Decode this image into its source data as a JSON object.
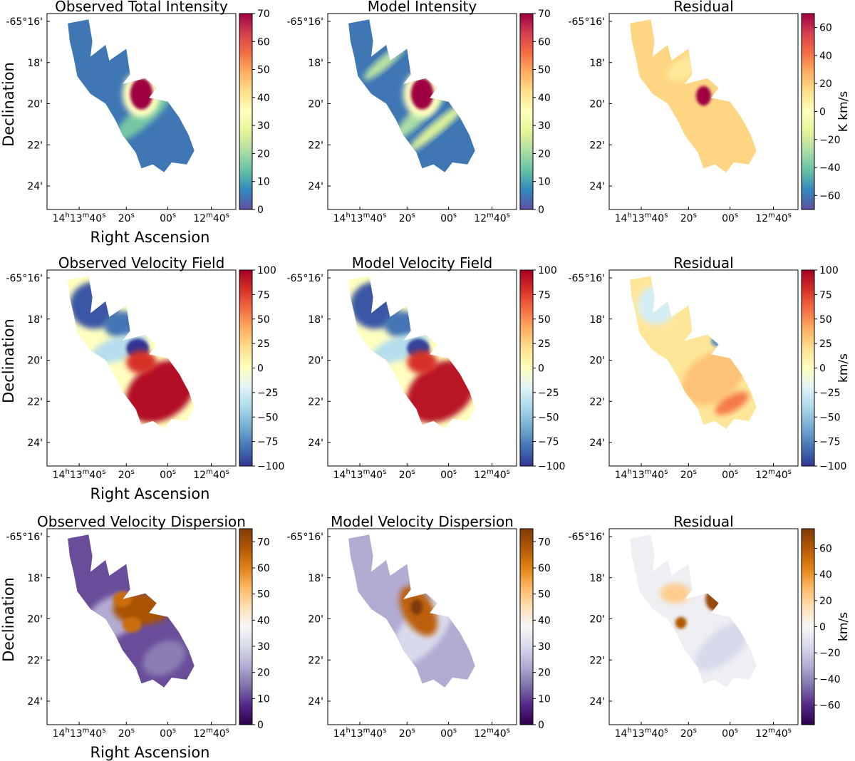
{
  "chart_data": [
    {
      "type": "heatmap",
      "title": "Observed Total Intensity",
      "xlabel": "Right Ascension",
      "ylabel": "Declination",
      "x_ticks": [
        "14h13m40s",
        "20s",
        "00s",
        "12m40s"
      ],
      "y_ticks": [
        "-65°16'",
        "18'",
        "20'",
        "22'",
        "24'"
      ],
      "colorbar": {
        "colormap": "spectral_r",
        "min": 0,
        "max": 70,
        "ticks": [
          0,
          10,
          20,
          30,
          40,
          50,
          60,
          70
        ],
        "label": ""
      }
    },
    {
      "type": "heatmap",
      "title": "Model Intensity",
      "xlabel": "",
      "ylabel": "",
      "x_ticks": [
        "14h13m40s",
        "20s",
        "00s",
        "12m40s"
      ],
      "y_ticks": [
        "-65°16'",
        "18'",
        "20'",
        "22'",
        "24'"
      ],
      "colorbar": {
        "colormap": "spectral_r",
        "min": 0,
        "max": 70,
        "ticks": [
          0,
          10,
          20,
          30,
          40,
          50,
          60,
          70
        ],
        "label": ""
      }
    },
    {
      "type": "heatmap",
      "title": "Residual",
      "xlabel": "",
      "ylabel": "",
      "x_ticks": [
        "14h13m40s",
        "20s",
        "00s",
        "12m40s"
      ],
      "y_ticks": [
        "-65°16'",
        "18'",
        "20'",
        "22'",
        "24'"
      ],
      "colorbar": {
        "colormap": "spectral_r",
        "min": -70,
        "max": 70,
        "ticks": [
          -60,
          -40,
          -20,
          0,
          20,
          40,
          60
        ],
        "label": "K km/s"
      }
    },
    {
      "type": "heatmap",
      "title": "Observed Velocity Field",
      "xlabel": "Right Ascension",
      "ylabel": "Declination",
      "x_ticks": [
        "14h13m40s",
        "20s",
        "00s",
        "12m40s"
      ],
      "y_ticks": [
        "-65°16'",
        "18'",
        "20'",
        "22'",
        "24'"
      ],
      "colorbar": {
        "colormap": "rdylbu_r",
        "min": -100,
        "max": 100,
        "ticks": [
          -100,
          -75,
          -50,
          -25,
          0,
          25,
          50,
          75,
          100
        ],
        "label": ""
      }
    },
    {
      "type": "heatmap",
      "title": "Model Velocity Field",
      "xlabel": "",
      "ylabel": "",
      "x_ticks": [
        "14h13m40s",
        "20s",
        "00s",
        "12m40s"
      ],
      "y_ticks": [
        "-65°16'",
        "18'",
        "20'",
        "22'",
        "24'"
      ],
      "colorbar": {
        "colormap": "rdylbu_r",
        "min": -100,
        "max": 100,
        "ticks": [
          -100,
          -75,
          -50,
          -25,
          0,
          25,
          50,
          75,
          100
        ],
        "label": ""
      }
    },
    {
      "type": "heatmap",
      "title": "Residual",
      "xlabel": "",
      "ylabel": "",
      "x_ticks": [
        "14h13m40s",
        "20s",
        "00s",
        "12m40s"
      ],
      "y_ticks": [
        "-65°16'",
        "18'",
        "20'",
        "22'",
        "24'"
      ],
      "colorbar": {
        "colormap": "rdylbu_r",
        "min": -100,
        "max": 100,
        "ticks": [
          -100,
          -75,
          -50,
          -25,
          0,
          25,
          50,
          75,
          100
        ],
        "label": "km/s"
      }
    },
    {
      "type": "heatmap",
      "title": "Observed Velocity Dispersion",
      "xlabel": "Right Ascension",
      "ylabel": "Declination",
      "x_ticks": [
        "14h13m40s",
        "20s",
        "00s",
        "12m40s"
      ],
      "y_ticks": [
        "-65°16'",
        "18'",
        "20'",
        "22'",
        "24'"
      ],
      "colorbar": {
        "colormap": "puor_r",
        "min": 0,
        "max": 75,
        "ticks": [
          0,
          10,
          20,
          30,
          40,
          50,
          60,
          70
        ],
        "label": ""
      }
    },
    {
      "type": "heatmap",
      "title": "Model Velocity Dispersion",
      "xlabel": "",
      "ylabel": "",
      "x_ticks": [
        "14h13m40s",
        "20s",
        "00s",
        "12m40s"
      ],
      "y_ticks": [
        "-65°16'",
        "18'",
        "20'",
        "22'",
        "24'"
      ],
      "colorbar": {
        "colormap": "puor_r",
        "min": 0,
        "max": 75,
        "ticks": [
          0,
          10,
          20,
          30,
          40,
          50,
          60,
          70
        ],
        "label": ""
      }
    },
    {
      "type": "heatmap",
      "title": "Residual",
      "xlabel": "",
      "ylabel": "",
      "x_ticks": [
        "14h13m40s",
        "20s",
        "00s",
        "12m40s"
      ],
      "y_ticks": [
        "-65°16'",
        "18'",
        "20'",
        "22'",
        "24'"
      ],
      "colorbar": {
        "colormap": "puor_r",
        "min": -75,
        "max": 75,
        "ticks": [
          -60,
          -40,
          -20,
          0,
          20,
          40,
          60
        ],
        "label": "km/s"
      }
    }
  ],
  "colormaps": {
    "spectral_r": [
      "#5e4fa2",
      "#3288bd",
      "#66c2a5",
      "#abdda4",
      "#e6f598",
      "#ffffbf",
      "#fee08b",
      "#fdae61",
      "#f46d43",
      "#d53e4f",
      "#9e0142"
    ],
    "rdylbu_r": [
      "#313695",
      "#4575b4",
      "#74add1",
      "#abd9e9",
      "#e0f3f8",
      "#ffffbf",
      "#fee090",
      "#fdae61",
      "#f46d43",
      "#d73027",
      "#a50026"
    ],
    "puor_r": [
      "#2d004b",
      "#542788",
      "#8073ac",
      "#b2abd2",
      "#d8daeb",
      "#f7f7f7",
      "#fee0b6",
      "#fdb863",
      "#e08214",
      "#b35806",
      "#7f3b08"
    ]
  }
}
